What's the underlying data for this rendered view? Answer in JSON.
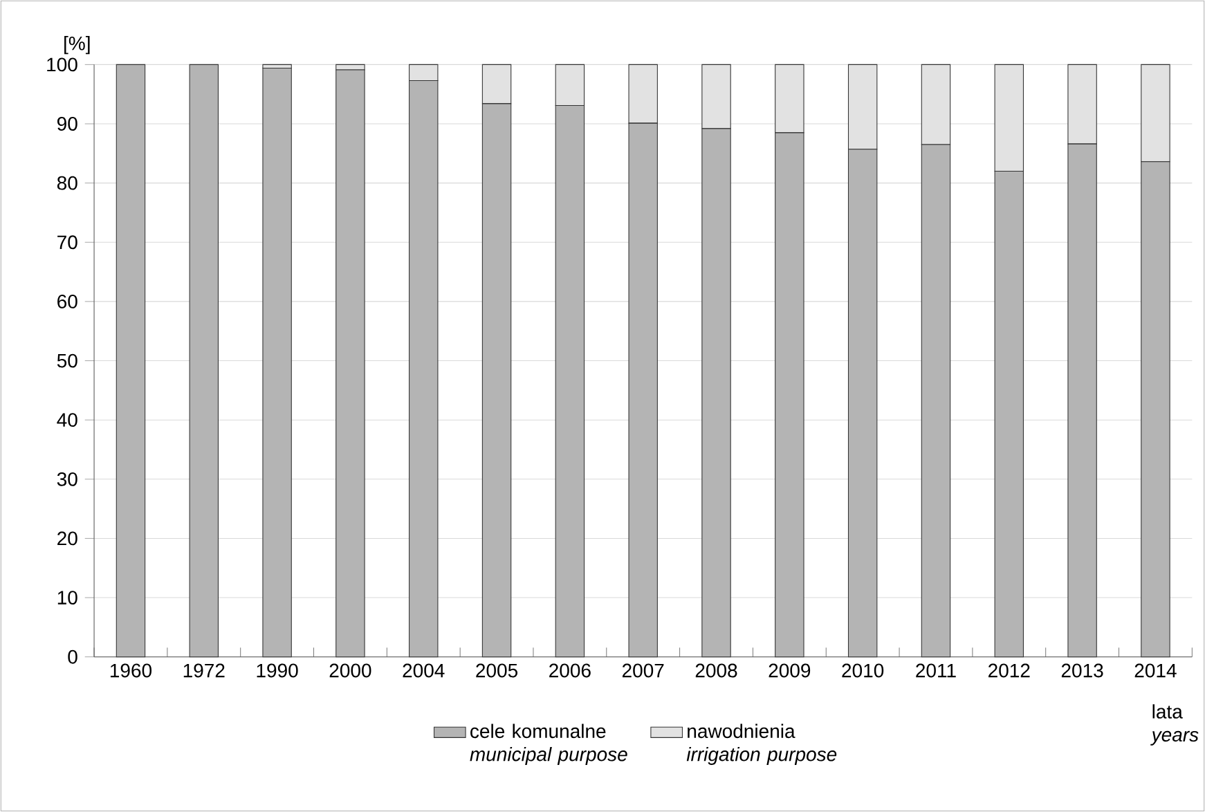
{
  "chart_data": {
    "type": "bar",
    "stacked": true,
    "ylabel": "[%]",
    "xlabel": "lata *years*",
    "categories": [
      "1960",
      "1972",
      "1990",
      "2000",
      "2004",
      "2005",
      "2006",
      "2007",
      "2008",
      "2009",
      "2010",
      "2011",
      "2012",
      "2013",
      "2014"
    ],
    "series": [
      {
        "name": "cele komunalne *municipal purpose*",
        "color": "#b4b4b4",
        "values": [
          100,
          100,
          99.4,
          99.1,
          97.3,
          93.4,
          93.1,
          90.1,
          89.2,
          88.5,
          85.7,
          86.5,
          82.0,
          86.6,
          83.6
        ]
      },
      {
        "name": "nawodnienia *irrigation purpose*",
        "color": "#e2e2e2",
        "values": [
          0,
          0,
          0.6,
          0.9,
          2.7,
          6.6,
          6.9,
          9.9,
          10.8,
          11.5,
          14.3,
          13.5,
          18.0,
          13.4,
          16.4
        ]
      }
    ],
    "ylim": [
      0,
      100
    ],
    "yticks": [
      0,
      10,
      20,
      30,
      40,
      50,
      60,
      70,
      80,
      90,
      100
    ],
    "grid": "y",
    "legend": "bottom"
  }
}
